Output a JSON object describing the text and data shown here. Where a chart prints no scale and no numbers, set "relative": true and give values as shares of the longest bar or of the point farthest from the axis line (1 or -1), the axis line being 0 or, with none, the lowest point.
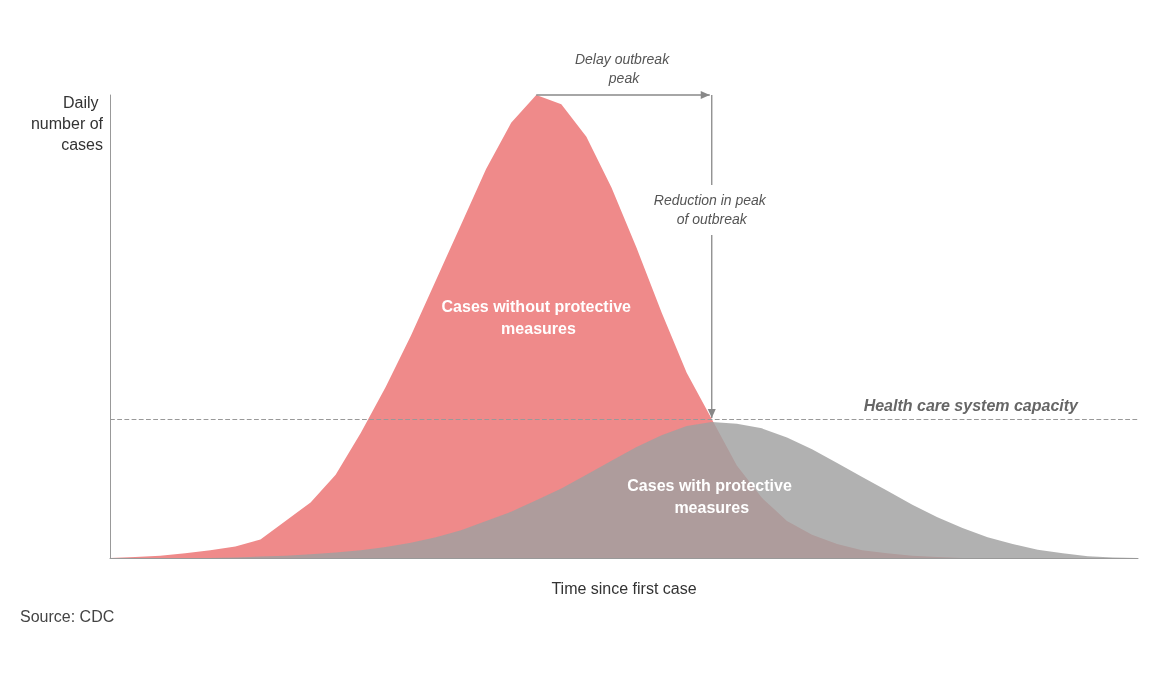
{
  "chart_data": {
    "type": "area",
    "relative": true,
    "marker": "none",
    "xlabel": "Time since first case",
    "ylabel": "Daily number of cases",
    "categories": [
      null,
      null,
      null,
      null,
      null,
      null,
      null,
      null,
      null,
      null,
      null,
      null,
      null,
      null,
      null,
      null,
      null,
      null,
      null,
      null,
      null,
      null,
      null,
      null,
      null,
      null,
      null,
      null,
      null,
      null,
      null,
      null,
      null,
      null,
      null,
      null,
      null,
      null,
      null,
      null,
      null,
      null
    ],
    "series": [
      {
        "name": "Cases without protective measures",
        "color": "#ef8a8a",
        "values": [
          0,
          0.002,
          0.005,
          0.01,
          0.017,
          0.025,
          0.04,
          0.08,
          0.12,
          0.18,
          0.27,
          0.37,
          0.48,
          0.6,
          0.72,
          0.84,
          0.94,
          1.0,
          0.98,
          0.91,
          0.8,
          0.67,
          0.53,
          0.4,
          0.3,
          0.2,
          0.13,
          0.08,
          0.05,
          0.03,
          0.017,
          0.01,
          0.005,
          0.002,
          0,
          0,
          0,
          0,
          0,
          0,
          0,
          0
        ]
      },
      {
        "name": "Cases with protective measures",
        "color": "#a0a0a0",
        "values": [
          0,
          0,
          0,
          0,
          0,
          0.001,
          0.003,
          0.005,
          0.008,
          0.012,
          0.017,
          0.024,
          0.033,
          0.045,
          0.06,
          0.08,
          0.1,
          0.125,
          0.15,
          0.18,
          0.21,
          0.24,
          0.265,
          0.285,
          0.294,
          0.29,
          0.28,
          0.26,
          0.235,
          0.205,
          0.175,
          0.145,
          0.115,
          0.088,
          0.065,
          0.045,
          0.03,
          0.018,
          0.01,
          0.004,
          0.001,
          0
        ]
      }
    ],
    "ref_lines": [
      {
        "axis": "y",
        "value": 0.3,
        "label": "Health care system capacity",
        "color": "#999999",
        "line_style": "dashed"
      }
    ],
    "annotations": [
      "Delay outbreak peak",
      "Reduction in peak of outbreak",
      "Source: CDC"
    ]
  }
}
